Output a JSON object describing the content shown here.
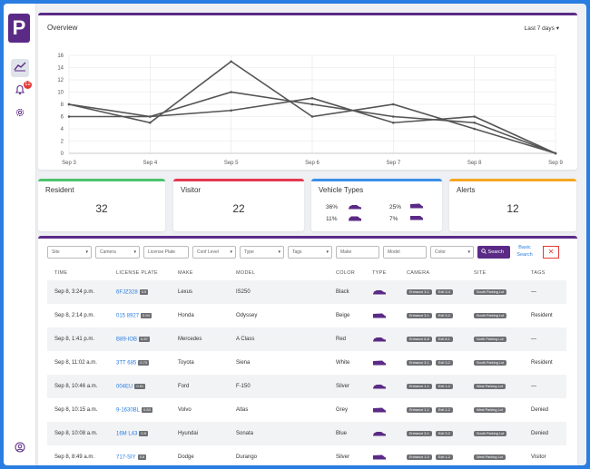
{
  "nav": {
    "logo_letter": "P",
    "notification_count": "12"
  },
  "overview": {
    "title": "Overview",
    "range_label": "Last 7 days",
    "range_caret": "▾"
  },
  "chart_data": {
    "type": "line",
    "x": [
      "Sep 3",
      "Sep 4",
      "Sep 5",
      "Sep 6",
      "Sep 7",
      "Sep 8",
      "Sep 9"
    ],
    "y_ticks": [
      "0",
      "2",
      "4",
      "6",
      "8",
      "10",
      "12",
      "14",
      "16"
    ],
    "ylim": [
      0,
      16
    ],
    "grid": true,
    "series": [
      {
        "values": [
          8,
          5,
          15,
          6,
          8,
          4,
          0
        ]
      },
      {
        "values": [
          8,
          6,
          10,
          8,
          6,
          5,
          0
        ]
      },
      {
        "values": [
          6,
          6,
          7,
          9,
          5,
          6,
          0
        ]
      }
    ],
    "line_color": "#555555"
  },
  "stats": {
    "resident": {
      "label": "Resident",
      "value": "32",
      "color": "#4cc36c"
    },
    "visitor": {
      "label": "Visitor",
      "value": "22",
      "color": "#e53950"
    },
    "vehicle_types": {
      "label": "Vehicle Types",
      "color": "#3b8fe8",
      "items": [
        {
          "pct": "36%",
          "icon": "sedan-icon"
        },
        {
          "pct": "25%",
          "icon": "van-icon"
        },
        {
          "pct": "11%",
          "icon": "suv-icon"
        },
        {
          "pct": "7%",
          "icon": "truck-icon"
        }
      ]
    },
    "alerts": {
      "label": "Alerts",
      "value": "12",
      "color": "#f5a623"
    }
  },
  "filters": {
    "site": "Site",
    "camera": "Camera",
    "plate_placeholder": "License Plate",
    "conf": "Conf Level",
    "type": "Type",
    "tags": "Tags",
    "make_placeholder": "Make",
    "model_placeholder": "Model",
    "color": "Color",
    "search": "Search",
    "basic_search": "Basic Search",
    "close": "✕",
    "caret": "▾"
  },
  "table": {
    "headers": [
      "TIME",
      "LICENSE PLATE",
      "MAKE",
      "MODEL",
      "COLOR",
      "TYPE",
      "CAMERA",
      "SITE",
      "TAGS"
    ],
    "rows": [
      {
        "time": "Sep 8, 3:24 p.m.",
        "plate": "6FJZ328",
        "conf": "0.9",
        "make": "Lexus",
        "model": "IS250",
        "color": "Black",
        "cam1": "Entrance 3-1",
        "cam2": "Exit 3-4",
        "site": "South Parking Lot",
        "tag": "—"
      },
      {
        "time": "Sep 8, 2:14 p.m.",
        "plate": "015 8927",
        "conf": "0.94",
        "make": "Honda",
        "model": "Odyssey",
        "color": "Beige",
        "cam1": "Entrance 3-1",
        "cam2": "Exit 3-2",
        "site": "South Parking Lot",
        "tag": "Resident"
      },
      {
        "time": "Sep 8, 1:41 p.m.",
        "plate": "B89-IOB",
        "conf": "0.87",
        "make": "Mercedes",
        "model": "A Class",
        "color": "Red",
        "cam1": "Entrance 6-8",
        "cam2": "Exit 8-1",
        "site": "North Parking Lot",
        "tag": "—"
      },
      {
        "time": "Sep 8, 11:02 a.m.",
        "plate": "3TT 685",
        "conf": "0.73",
        "make": "Toyota",
        "model": "Siena",
        "color": "White",
        "cam1": "Entrance 3-1",
        "cam2": "Exit 3-2",
        "site": "South Parking Lot",
        "tag": "Resident"
      },
      {
        "time": "Sep 8, 10:46 a.m.",
        "plate": "004EU",
        "conf": "0.91",
        "make": "Ford",
        "model": "F-150",
        "color": "Silver",
        "cam1": "Entrance 1-1",
        "cam2": "Exit 1-2",
        "site": "West Parking Lot",
        "tag": "—"
      },
      {
        "time": "Sep 8, 10:15 a.m.",
        "plate": "9-1630BL",
        "conf": "0.83",
        "make": "Volvo",
        "model": "Atlas",
        "color": "Grey",
        "cam1": "Entrance 1-1",
        "cam2": "Exit 1-2",
        "site": "West Parking Lot",
        "tag": "Denied"
      },
      {
        "time": "Sep 8, 10:08 a.m.",
        "plate": "16M L43",
        "conf": "0.9",
        "make": "Hyundai",
        "model": "Sonata",
        "color": "Blue",
        "cam1": "Entrance 3-1",
        "cam2": "Exit 3-2",
        "site": "South Parking Lot",
        "tag": "Denied"
      },
      {
        "time": "Sep 8, 8:49 a.m.",
        "plate": "717-SIY",
        "conf": "0.8",
        "make": "Dodge",
        "model": "Durango",
        "color": "Silver",
        "cam1": "Entrance 1-0",
        "cam2": "Exit 1-2",
        "site": "West Parking Lot",
        "tag": "Visitor"
      }
    ]
  },
  "colors": {
    "brand": "#5b2a86",
    "link": "#2a7de1"
  }
}
